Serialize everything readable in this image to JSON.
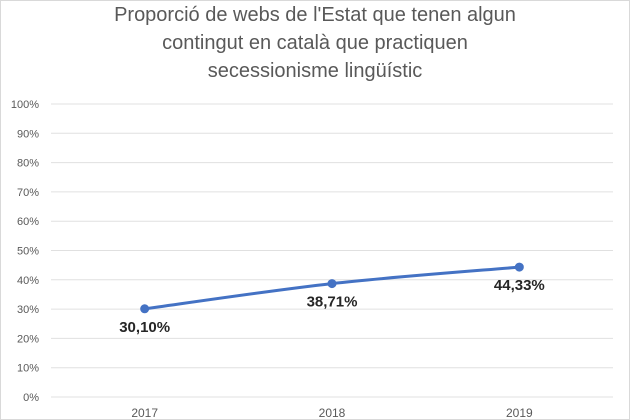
{
  "chart_data": {
    "type": "line",
    "title_lines": [
      "Proporció de webs de l'Estat que tenen algun",
      "contingut en català que practiquen",
      "secessionisme lingüístic"
    ],
    "categories": [
      "2017",
      "2018",
      "2019"
    ],
    "series": [
      {
        "values": [
          30.1,
          38.71,
          44.33
        ],
        "labels": [
          "30,10%",
          "38,71%",
          "44,33%"
        ],
        "color": "#4472c4"
      }
    ],
    "y_ticks": [
      "0%",
      "10%",
      "20%",
      "30%",
      "40%",
      "50%",
      "60%",
      "70%",
      "80%",
      "90%",
      "100%"
    ],
    "ylim": [
      0,
      100
    ],
    "grid": true,
    "legend": "none",
    "gridline_color": "#e0e0e0"
  }
}
